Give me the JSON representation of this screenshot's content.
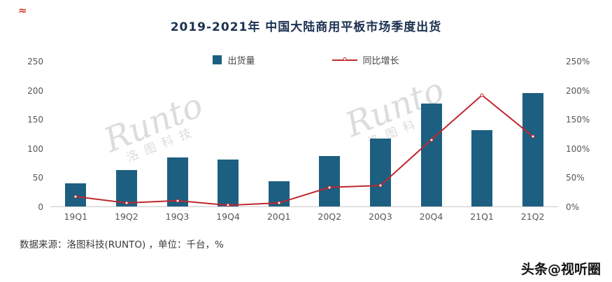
{
  "page": {
    "logo_mark": "≈",
    "source_note": "数据来源：洛图科技(RUNTO) ，单位：千台，%",
    "watermark_badge": "头条@视听圈",
    "watermark_logo": {
      "latin": "Runto",
      "cjk": "洛图科技"
    }
  },
  "chart_data": {
    "type": "bar+line",
    "title": "2019-2021年 中国大陆商用平板市场季度出货",
    "categories": [
      "19Q1",
      "19Q2",
      "19Q3",
      "19Q4",
      "20Q1",
      "20Q2",
      "20Q3",
      "20Q4",
      "21Q1",
      "21Q2"
    ],
    "series": [
      {
        "name": "出货量",
        "type": "bar",
        "axis": "left",
        "unit": "千台",
        "color": "#1d5f80",
        "values": [
          40,
          63,
          85,
          81,
          44,
          87,
          117,
          177,
          132,
          196
        ]
      },
      {
        "name": "同比增长",
        "type": "line",
        "axis": "right",
        "unit": "%",
        "color": "#c0272d",
        "values": [
          17,
          6,
          10,
          2,
          6,
          33,
          36,
          115,
          192,
          121
        ]
      }
    ],
    "left_axis": {
      "ticks": [
        0,
        50,
        100,
        150,
        200,
        250
      ],
      "max": 250
    },
    "right_axis": {
      "ticks": [
        "0%",
        "50%",
        "100%",
        "150%",
        "200%",
        "250%"
      ],
      "max": 250
    },
    "legend": [
      "出货量",
      "同比增长"
    ],
    "legend_position": "top-center",
    "grid": false
  }
}
